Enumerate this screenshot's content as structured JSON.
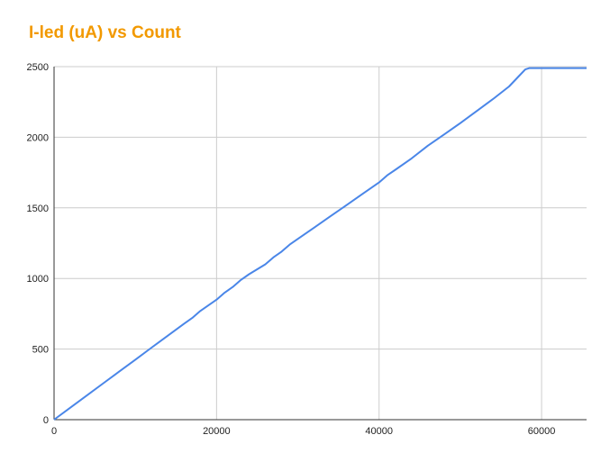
{
  "chart_data": {
    "type": "line",
    "title": "I-led (uA) vs Count",
    "xlabel": "",
    "ylabel": "",
    "xlim": [
      0,
      65535
    ],
    "ylim": [
      0,
      2500
    ],
    "x_ticks": [
      0,
      20000,
      40000,
      60000
    ],
    "y_ticks": [
      0,
      500,
      1000,
      1500,
      2000,
      2500
    ],
    "grid": true,
    "legend": "none",
    "colors": {
      "series": "#4a86e8",
      "title": "#f29900",
      "grid": "#cccccc"
    },
    "series": [
      {
        "x": [
          0,
          2000,
          4000,
          6000,
          8000,
          10000,
          12000,
          14000,
          16000,
          17000,
          18000,
          20000,
          21000,
          22000,
          23000,
          24000,
          26000,
          27000,
          28000,
          29000,
          30000,
          32000,
          34000,
          36000,
          38000,
          40000,
          41000,
          42000,
          44000,
          46000,
          48000,
          50000,
          52000,
          54000,
          56000,
          57000,
          58000,
          58500,
          59000,
          60000,
          62000,
          64000,
          65535
        ],
        "y": [
          0,
          85,
          170,
          255,
          340,
          425,
          510,
          595,
          680,
          720,
          770,
          850,
          900,
          940,
          990,
          1030,
          1100,
          1150,
          1190,
          1240,
          1280,
          1360,
          1440,
          1520,
          1600,
          1680,
          1730,
          1770,
          1850,
          1940,
          2020,
          2100,
          2185,
          2270,
          2360,
          2420,
          2480,
          2490,
          2490,
          2490,
          2490,
          2490,
          2490
        ]
      }
    ]
  }
}
